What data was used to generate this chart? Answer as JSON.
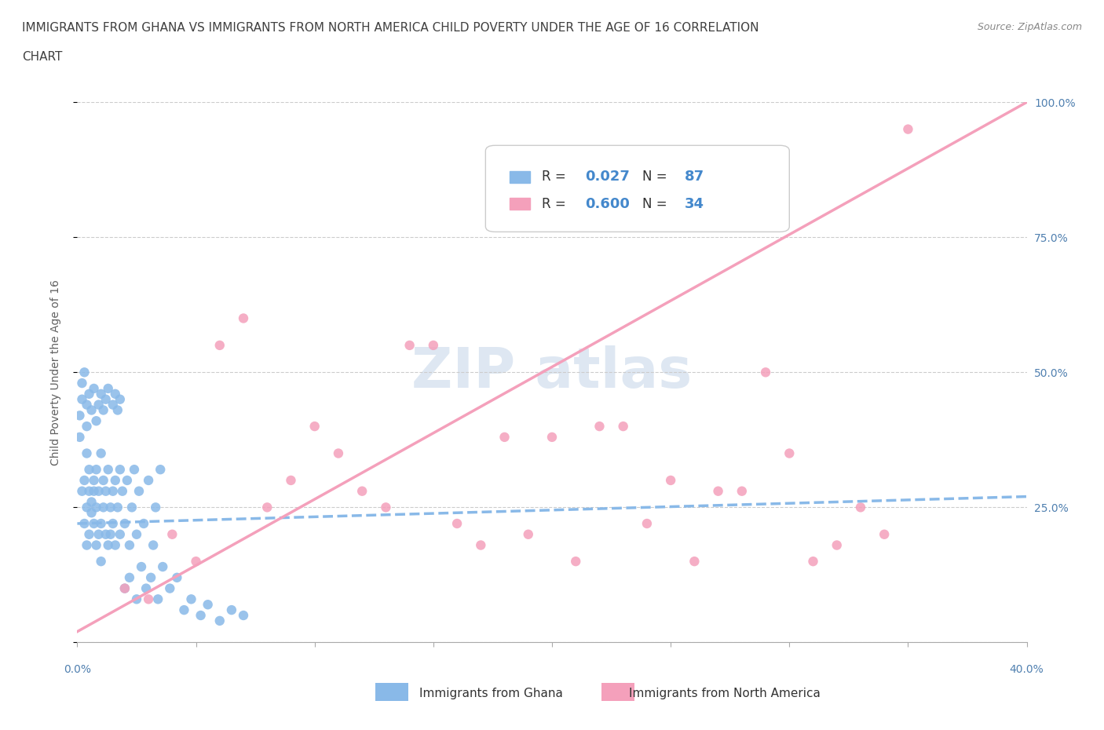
{
  "title_line1": "IMMIGRANTS FROM GHANA VS IMMIGRANTS FROM NORTH AMERICA CHILD POVERTY UNDER THE AGE OF 16 CORRELATION",
  "title_line2": "CHART",
  "source_text": "Source: ZipAtlas.com",
  "ylabel": "Child Poverty Under the Age of 16",
  "xlim": [
    0.0,
    0.4
  ],
  "ylim": [
    0.0,
    1.0
  ],
  "x_ticks": [
    0.0,
    0.05,
    0.1,
    0.15,
    0.2,
    0.25,
    0.3,
    0.35,
    0.4
  ],
  "y_ticks": [
    0.0,
    0.25,
    0.5,
    0.75,
    1.0
  ],
  "y_tick_labels": [
    "",
    "25.0%",
    "50.0%",
    "75.0%",
    "100.0%"
  ],
  "ghana_scatter_color": "#89B9E8",
  "north_america_scatter_color": "#F4A0BB",
  "ghana_R": 0.027,
  "ghana_N": 87,
  "north_america_R": 0.6,
  "north_america_N": 34,
  "watermark_color": "#C8D8EA",
  "ghana_scatter_x": [
    0.002,
    0.003,
    0.003,
    0.004,
    0.004,
    0.004,
    0.005,
    0.005,
    0.005,
    0.006,
    0.006,
    0.007,
    0.007,
    0.007,
    0.008,
    0.008,
    0.008,
    0.009,
    0.009,
    0.01,
    0.01,
    0.01,
    0.011,
    0.011,
    0.012,
    0.012,
    0.013,
    0.013,
    0.014,
    0.014,
    0.015,
    0.015,
    0.016,
    0.016,
    0.017,
    0.018,
    0.018,
    0.019,
    0.02,
    0.021,
    0.022,
    0.023,
    0.024,
    0.025,
    0.026,
    0.028,
    0.03,
    0.032,
    0.033,
    0.035,
    0.001,
    0.001,
    0.002,
    0.002,
    0.003,
    0.004,
    0.004,
    0.005,
    0.006,
    0.007,
    0.008,
    0.009,
    0.01,
    0.011,
    0.012,
    0.013,
    0.015,
    0.016,
    0.017,
    0.018,
    0.02,
    0.022,
    0.025,
    0.027,
    0.029,
    0.031,
    0.034,
    0.036,
    0.039,
    0.042,
    0.045,
    0.048,
    0.052,
    0.055,
    0.06,
    0.065,
    0.07
  ],
  "ghana_scatter_y": [
    0.28,
    0.3,
    0.22,
    0.25,
    0.18,
    0.35,
    0.28,
    0.32,
    0.2,
    0.26,
    0.24,
    0.3,
    0.22,
    0.28,
    0.25,
    0.18,
    0.32,
    0.2,
    0.28,
    0.35,
    0.22,
    0.15,
    0.3,
    0.25,
    0.2,
    0.28,
    0.18,
    0.32,
    0.25,
    0.2,
    0.28,
    0.22,
    0.3,
    0.18,
    0.25,
    0.32,
    0.2,
    0.28,
    0.22,
    0.3,
    0.18,
    0.25,
    0.32,
    0.2,
    0.28,
    0.22,
    0.3,
    0.18,
    0.25,
    0.32,
    0.38,
    0.42,
    0.45,
    0.48,
    0.5,
    0.44,
    0.4,
    0.46,
    0.43,
    0.47,
    0.41,
    0.44,
    0.46,
    0.43,
    0.45,
    0.47,
    0.44,
    0.46,
    0.43,
    0.45,
    0.1,
    0.12,
    0.08,
    0.14,
    0.1,
    0.12,
    0.08,
    0.14,
    0.1,
    0.12,
    0.06,
    0.08,
    0.05,
    0.07,
    0.04,
    0.06,
    0.05
  ],
  "north_america_scatter_x": [
    0.02,
    0.03,
    0.04,
    0.05,
    0.06,
    0.07,
    0.08,
    0.09,
    0.1,
    0.11,
    0.12,
    0.13,
    0.14,
    0.15,
    0.16,
    0.17,
    0.18,
    0.19,
    0.2,
    0.21,
    0.22,
    0.23,
    0.24,
    0.25,
    0.26,
    0.27,
    0.28,
    0.29,
    0.3,
    0.31,
    0.32,
    0.33,
    0.34,
    0.35
  ],
  "north_america_scatter_y": [
    0.1,
    0.08,
    0.2,
    0.15,
    0.55,
    0.6,
    0.25,
    0.3,
    0.4,
    0.35,
    0.28,
    0.25,
    0.55,
    0.55,
    0.22,
    0.18,
    0.38,
    0.2,
    0.38,
    0.15,
    0.4,
    0.4,
    0.22,
    0.3,
    0.15,
    0.28,
    0.28,
    0.5,
    0.35,
    0.15,
    0.18,
    0.25,
    0.2,
    0.95
  ],
  "ghana_trend_x": [
    0.0,
    0.4
  ],
  "ghana_trend_y": [
    0.22,
    0.27
  ],
  "north_america_trend_x": [
    0.0,
    0.4
  ],
  "north_america_trend_y": [
    0.02,
    1.0
  ],
  "background_color": "#FFFFFF",
  "grid_color": "#CCCCCC",
  "title_color": "#404040",
  "axis_label_color": "#606060",
  "tick_label_color": "#5080B0",
  "legend_value_color": "#4488CC"
}
